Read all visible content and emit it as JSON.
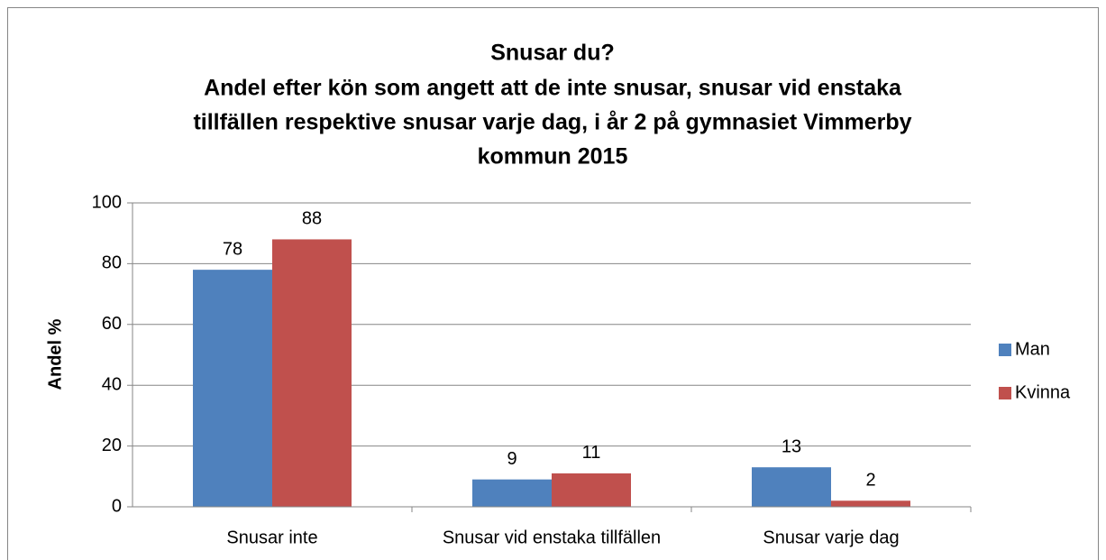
{
  "chart_data": {
    "type": "bar",
    "title": [
      "Snusar du?",
      "Andel efter kön som angett att de inte snusar, snusar vid enstaka",
      "tillfällen respektive snusar varje dag, i år 2 på gymnasiet Vimmerby",
      "kommun 2015"
    ],
    "y_label": "Andel %",
    "categories": [
      "Snusar inte",
      "Snusar vid enstaka tillfällen",
      "Snusar varje dag"
    ],
    "series": [
      {
        "name": "Man",
        "color": "#4f81bd",
        "values": [
          78,
          9,
          13
        ]
      },
      {
        "name": "Kvinna",
        "color": "#c0504d",
        "values": [
          88,
          11,
          2
        ]
      }
    ],
    "ylim": [
      0,
      100
    ],
    "yticks": [
      0,
      20,
      40,
      60,
      80,
      100
    ],
    "grid": true,
    "legend": "right"
  }
}
